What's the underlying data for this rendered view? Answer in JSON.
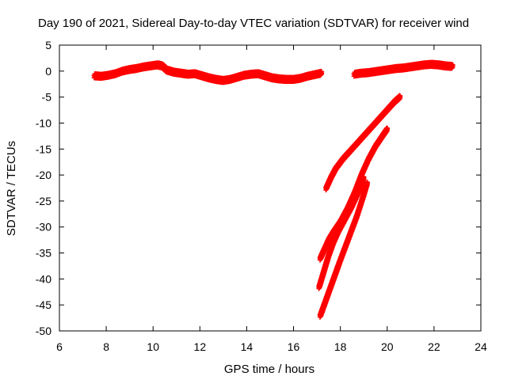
{
  "chart_data": {
    "type": "scatter",
    "title": "Day 190 of 2021, Sidereal Day-to-day VTEC variation (SDTVAR) for receiver wind",
    "xlabel": "GPS time / hours",
    "ylabel": "SDTVAR / TECUs",
    "xlim": [
      6,
      24
    ],
    "ylim": [
      -50,
      5
    ],
    "xticks": [
      6,
      8,
      10,
      12,
      14,
      16,
      18,
      20,
      22,
      24
    ],
    "yticks": [
      5,
      0,
      -5,
      -10,
      -15,
      -20,
      -25,
      -30,
      -35,
      -40,
      -45,
      -50
    ],
    "grid": false,
    "legend": "none",
    "marker": "plus",
    "color": "#ff0000",
    "series": [
      {
        "values": [
          [
            7.5,
            -0.9
          ],
          [
            7.8,
            -1.0
          ],
          [
            8.1,
            -0.8
          ],
          [
            8.4,
            -0.5
          ],
          [
            8.7,
            0.0
          ],
          [
            9.0,
            0.3
          ],
          [
            9.3,
            0.5
          ],
          [
            9.6,
            0.8
          ],
          [
            9.9,
            1.0
          ],
          [
            10.2,
            1.2
          ],
          [
            10.4,
            1.0
          ],
          [
            10.6,
            0.2
          ],
          [
            10.9,
            -0.2
          ],
          [
            11.2,
            -0.4
          ],
          [
            11.5,
            -0.6
          ],
          [
            11.8,
            -0.5
          ],
          [
            12.1,
            -0.9
          ],
          [
            12.4,
            -1.3
          ],
          [
            12.7,
            -1.6
          ],
          [
            13.0,
            -1.8
          ],
          [
            13.3,
            -1.6
          ],
          [
            13.6,
            -1.2
          ],
          [
            13.9,
            -0.8
          ],
          [
            14.2,
            -0.6
          ],
          [
            14.5,
            -0.5
          ],
          [
            14.8,
            -0.9
          ],
          [
            15.1,
            -1.3
          ],
          [
            15.4,
            -1.5
          ],
          [
            15.7,
            -1.6
          ],
          [
            16.0,
            -1.6
          ],
          [
            16.3,
            -1.4
          ],
          [
            16.6,
            -1.0
          ],
          [
            16.9,
            -0.7
          ],
          [
            17.2,
            -0.4
          ]
        ]
      },
      {
        "values": [
          [
            18.6,
            -0.6
          ],
          [
            18.9,
            -0.4
          ],
          [
            19.2,
            -0.3
          ],
          [
            19.5,
            -0.1
          ],
          [
            19.8,
            0.1
          ],
          [
            20.1,
            0.3
          ],
          [
            20.4,
            0.5
          ],
          [
            20.7,
            0.6
          ],
          [
            21.0,
            0.8
          ],
          [
            21.3,
            1.0
          ],
          [
            21.6,
            1.2
          ],
          [
            21.9,
            1.3
          ],
          [
            22.2,
            1.2
          ],
          [
            22.5,
            1.0
          ],
          [
            22.8,
            0.9
          ]
        ]
      },
      {
        "values": [
          [
            17.4,
            -22.5
          ],
          [
            17.6,
            -20.5
          ],
          [
            17.8,
            -18.8
          ],
          [
            18.1,
            -17.0
          ],
          [
            18.4,
            -15.5
          ],
          [
            18.8,
            -13.5
          ],
          [
            19.2,
            -11.5
          ],
          [
            19.6,
            -9.5
          ],
          [
            20.0,
            -7.5
          ],
          [
            20.3,
            -6.0
          ],
          [
            20.55,
            -5.0
          ]
        ]
      },
      {
        "values": [
          [
            17.15,
            -36.0
          ],
          [
            17.3,
            -34.5
          ],
          [
            17.5,
            -32.5
          ],
          [
            17.7,
            -31.0
          ],
          [
            18.0,
            -29.0
          ],
          [
            18.3,
            -26.5
          ],
          [
            18.6,
            -23.5
          ],
          [
            18.9,
            -20.0
          ],
          [
            19.2,
            -17.0
          ],
          [
            19.5,
            -14.5
          ],
          [
            19.8,
            -12.5
          ],
          [
            20.0,
            -11.2
          ]
        ]
      },
      {
        "values": [
          [
            17.1,
            -41.5
          ],
          [
            17.3,
            -38.5
          ],
          [
            17.5,
            -35.5
          ],
          [
            17.7,
            -33.0
          ],
          [
            17.9,
            -31.0
          ],
          [
            18.2,
            -28.5
          ],
          [
            18.5,
            -26.0
          ],
          [
            18.8,
            -23.0
          ],
          [
            19.0,
            -20.5
          ]
        ]
      },
      {
        "values": [
          [
            17.15,
            -47.0
          ],
          [
            17.35,
            -44.5
          ],
          [
            17.55,
            -42.0
          ],
          [
            17.75,
            -39.5
          ],
          [
            17.95,
            -37.0
          ],
          [
            18.2,
            -34.0
          ],
          [
            18.45,
            -31.0
          ],
          [
            18.7,
            -28.0
          ],
          [
            18.95,
            -24.5
          ],
          [
            19.15,
            -21.5
          ]
        ]
      }
    ]
  }
}
